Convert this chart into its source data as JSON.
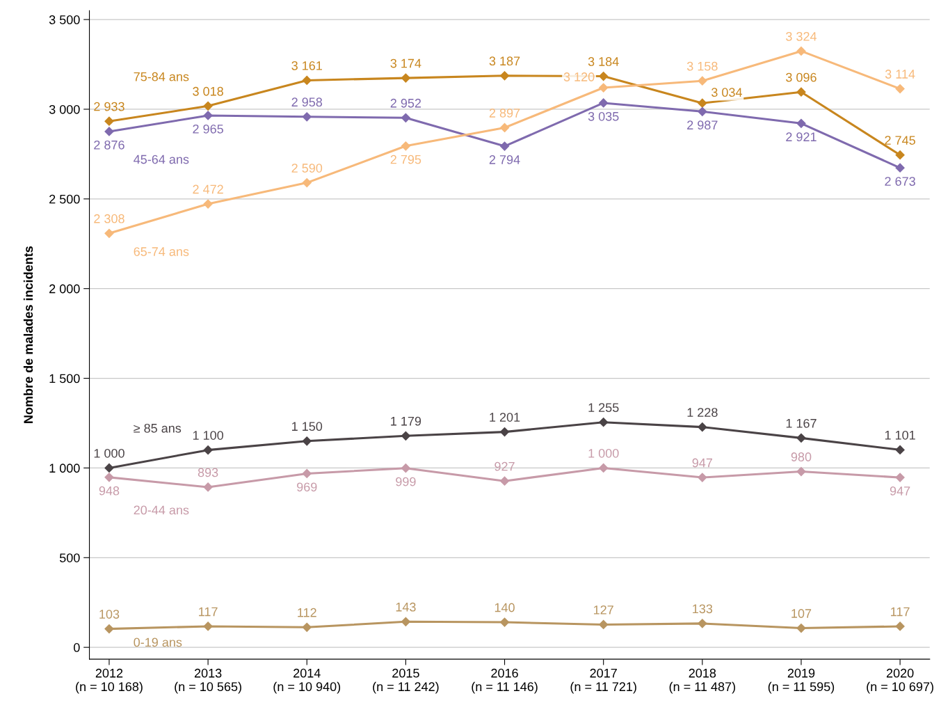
{
  "chart_data": {
    "type": "line",
    "ylabel": "Nombre de malades incidents",
    "categories": [
      "2012\n(n = 10 168)",
      "2013\n(n = 10 565)",
      "2014\n(n = 10 940)",
      "2015\n(n = 11 242)",
      "2016\n(n = 11 146)",
      "2017\n(n = 11 721)",
      "2018\n(n = 11 487)",
      "2019\n(n = 11 595)",
      "2020\n(n = 10 697)"
    ],
    "series": [
      {
        "name": "75-84 ans",
        "color": "#c8861e",
        "values": [
          2933,
          3018,
          3161,
          3174,
          3187,
          3184,
          3034,
          3096,
          2745
        ],
        "value_labels": [
          "2 933",
          "3 018",
          "3 161",
          "3 174",
          "3 187",
          "3 184",
          "3 034",
          "3 096",
          "2 745"
        ]
      },
      {
        "name": "45-64 ans",
        "color": "#7f6aae",
        "values": [
          2876,
          2965,
          2958,
          2952,
          2794,
          3035,
          2987,
          2921,
          2673
        ],
        "value_labels": [
          "2 876",
          "2 965",
          "2 958",
          "2 952",
          "2 794",
          "3 035",
          "2 987",
          "2 921",
          "2 673"
        ]
      },
      {
        "name": "65-74 ans",
        "color": "#f7b97a",
        "values": [
          2308,
          2472,
          2590,
          2795,
          2897,
          3120,
          3158,
          3324,
          3114
        ],
        "value_labels": [
          "2 308",
          "2 472",
          "2 590",
          "2 795",
          "2 897",
          "3 120",
          "3 158",
          "3 324",
          "3 114"
        ]
      },
      {
        "name": "≥ 85 ans",
        "color": "#4a4346",
        "values": [
          1000,
          1100,
          1150,
          1179,
          1201,
          1255,
          1228,
          1167,
          1101
        ],
        "value_labels": [
          "1 000",
          "1 100",
          "1 150",
          "1 179",
          "1 201",
          "1 255",
          "1 228",
          "1 167",
          "1 101"
        ]
      },
      {
        "name": "20-44 ans",
        "color": "#c79aa8",
        "values": [
          948,
          893,
          969,
          999,
          927,
          1000,
          947,
          980,
          947
        ],
        "value_labels": [
          "948",
          "893",
          "969",
          "999",
          "927",
          "1 000",
          "947",
          "980",
          "947"
        ]
      },
      {
        "name": "0-19 ans",
        "color": "#b89560",
        "values": [
          103,
          117,
          112,
          143,
          140,
          127,
          133,
          107,
          117
        ],
        "value_labels": [
          "103",
          "117",
          "112",
          "143",
          "140",
          "127",
          "133",
          "107",
          "117"
        ]
      }
    ],
    "ylim": [
      -66,
      3550
    ],
    "yticks": [
      {
        "value": 0,
        "label": "0"
      },
      {
        "value": 500,
        "label": "500"
      },
      {
        "value": 1000,
        "label": "1 000"
      },
      {
        "value": 1500,
        "label": "1 500"
      },
      {
        "value": 2000,
        "label": "2 000"
      },
      {
        "value": 2500,
        "label": "2 500"
      },
      {
        "value": 3000,
        "label": "3 000"
      },
      {
        "value": 3500,
        "label": "3 500"
      }
    ],
    "grid": "y",
    "marker": "diamond",
    "line_style": "solid",
    "legend": false
  }
}
